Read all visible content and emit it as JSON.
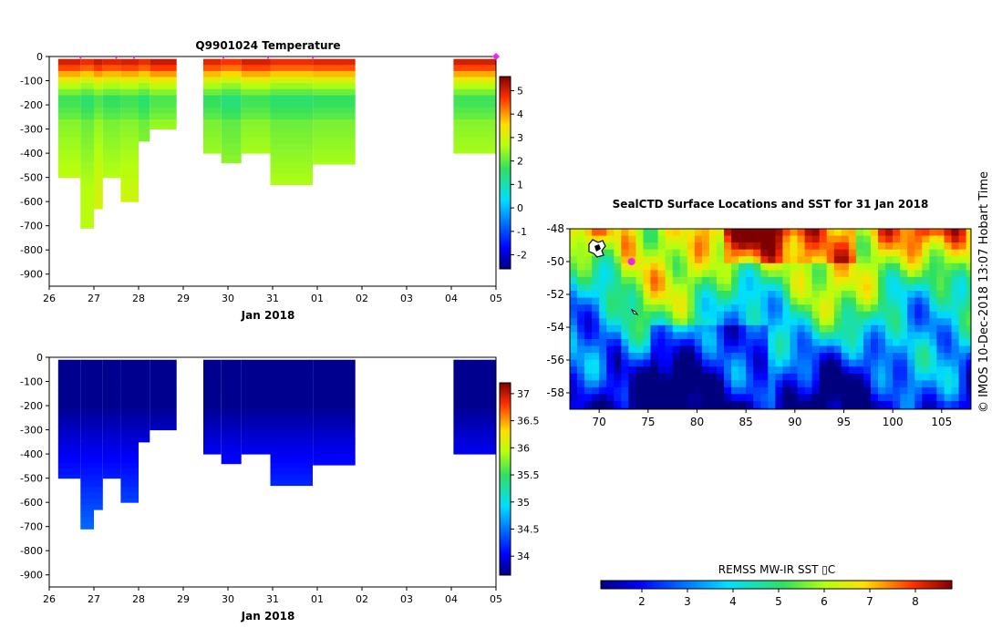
{
  "chart_data": [
    {
      "type": "heatmap",
      "title": "Q9901024  Temperature",
      "xlabel": "Jan 2018",
      "ylabel": "",
      "x_ticks": [
        "26",
        "27",
        "28",
        "29",
        "30",
        "31",
        "01",
        "02",
        "03",
        "04",
        "05"
      ],
      "y_ticks": [
        "0",
        "-100",
        "-200",
        "-300",
        "-400",
        "-500",
        "-600",
        "-700",
        "-800",
        "-900"
      ],
      "ylim": [
        -950,
        0
      ],
      "colorbar": {
        "min": -2.6,
        "max": 5.6,
        "ticks": [
          "5",
          "4",
          "3",
          "2",
          "1",
          "0",
          "-1",
          "-2"
        ],
        "tick_values": [
          5,
          4,
          3,
          2,
          1,
          0,
          -1,
          -2
        ]
      },
      "profile_markers_x": [
        26.7,
        27.5,
        27.9,
        29.9,
        30.9,
        31.9,
        36.0
      ],
      "highlight_marker_x": 36.0,
      "colors": {
        "marker": "#cc33cc",
        "highlight": "#ee22ee"
      }
    },
    {
      "type": "heatmap",
      "title": "",
      "xlabel": "Jan 2018",
      "ylabel": "",
      "x_ticks": [
        "26",
        "27",
        "28",
        "29",
        "30",
        "31",
        "01",
        "02",
        "03",
        "04",
        "05"
      ],
      "y_ticks": [
        "0",
        "-100",
        "-200",
        "-300",
        "-400",
        "-500",
        "-600",
        "-700",
        "-800",
        "-900"
      ],
      "ylim": [
        -950,
        0
      ],
      "colorbar": {
        "min": 33.65,
        "max": 37.2,
        "ticks": [
          "37",
          "36.5",
          "36",
          "35.5",
          "35",
          "34.5",
          "34"
        ],
        "tick_values": [
          37,
          36.5,
          36,
          35.5,
          35,
          34.5,
          34
        ]
      }
    },
    {
      "type": "heatmap",
      "title": "SealCTD Surface Locations and SST for 31 Jan 2018",
      "xlabel": "",
      "ylabel": "",
      "x_ticks": [
        "70",
        "75",
        "80",
        "85",
        "90",
        "95",
        "100",
        "105"
      ],
      "y_ticks": [
        "-48",
        "-50",
        "-52",
        "-54",
        "-56",
        "-58"
      ],
      "xlim": [
        67,
        108
      ],
      "ylim": [
        -59,
        -48
      ],
      "colorbar_label": "REMSS MW-IR SST ▯C",
      "colorbar": {
        "min": 1.1,
        "max": 8.8,
        "ticks": [
          "2",
          "3",
          "4",
          "5",
          "6",
          "7",
          "8"
        ],
        "tick_values": [
          2,
          3,
          4,
          5,
          6,
          7,
          8
        ]
      },
      "locations": [
        {
          "lon": 73.3,
          "lat": -50.0
        }
      ],
      "colors": {
        "location": "#ee22ee"
      }
    }
  ],
  "side_note": "© IMOS 10-Dec-2018 13:07 Hobart Time"
}
